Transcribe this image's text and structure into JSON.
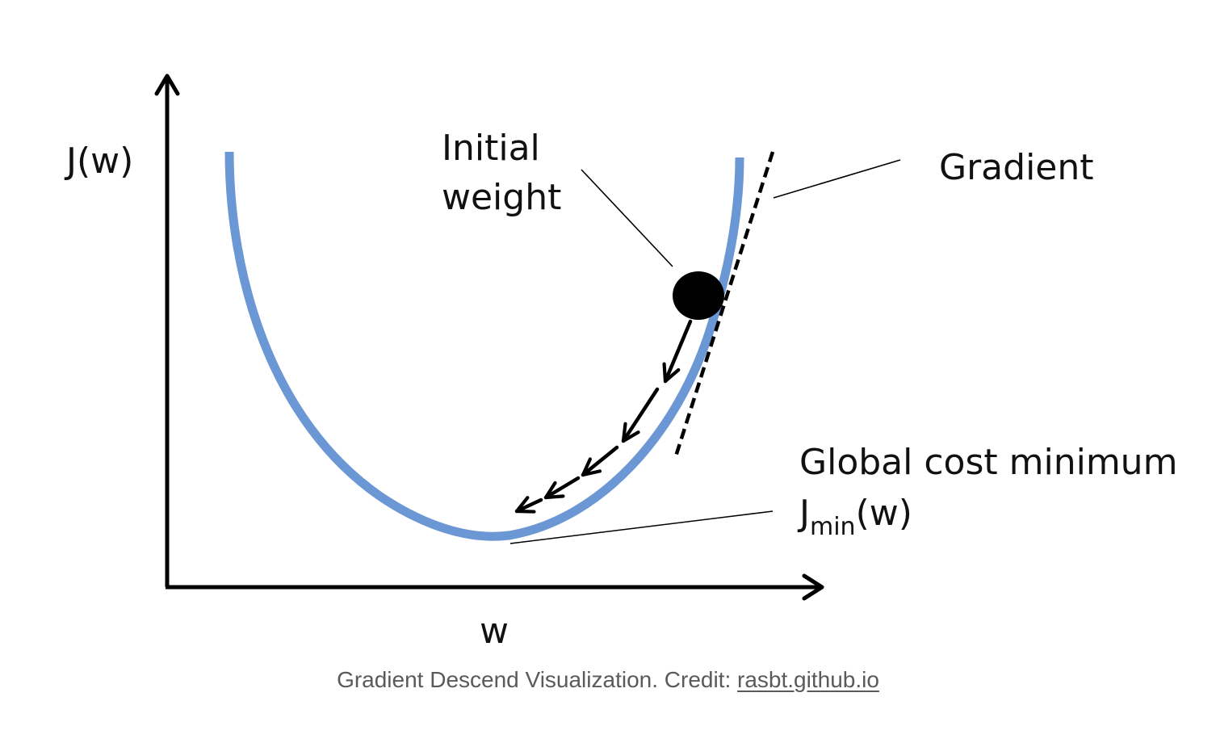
{
  "diagram": {
    "y_axis_label": "J(w)",
    "x_axis_label": "w",
    "initial_weight_line1": "Initial",
    "initial_weight_line2": "weight",
    "gradient_label": "Gradient",
    "global_min_label": "Global cost minimum",
    "jmin_base": "J",
    "jmin_sub": "min",
    "jmin_tail": "(w)"
  },
  "colors": {
    "curve": "#6b97d4",
    "ink": "#000000",
    "caption": "#5a5a5a"
  },
  "caption": {
    "text": "Gradient Descend Visualization. Credit: ",
    "link_text": "rasbt.github.io"
  }
}
